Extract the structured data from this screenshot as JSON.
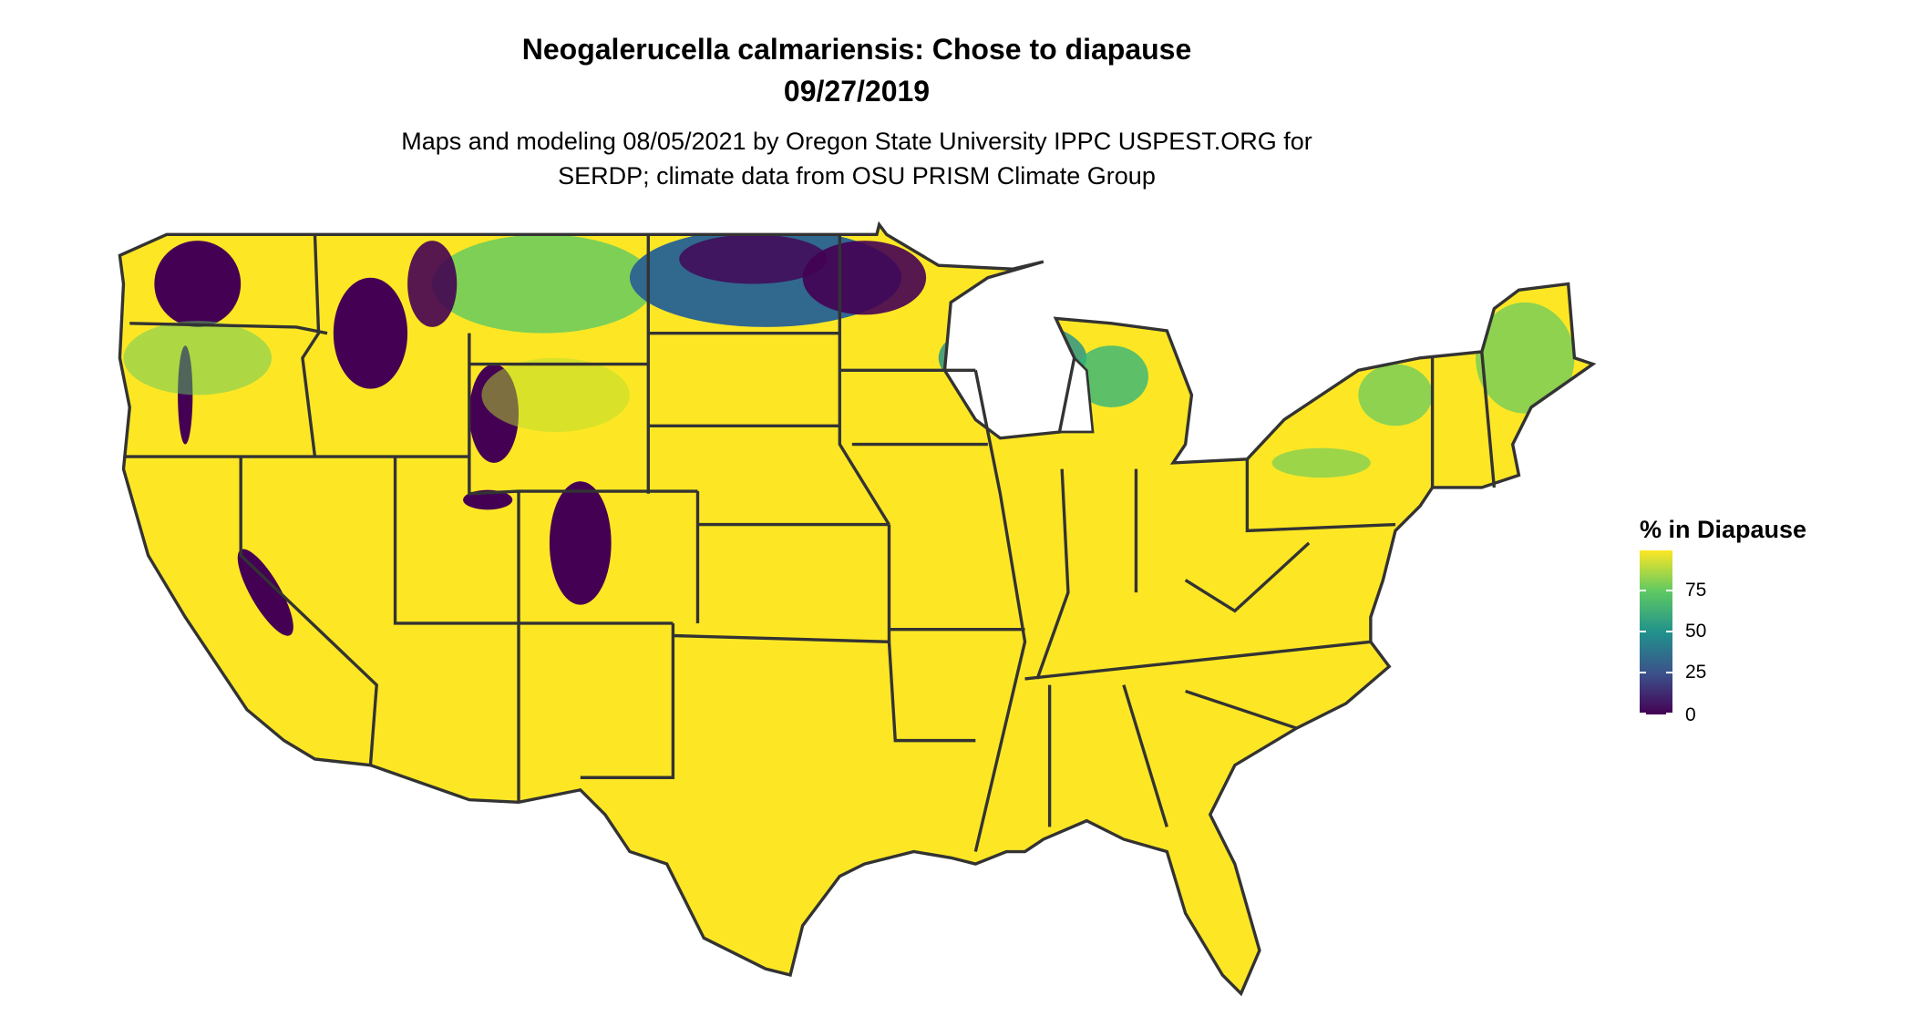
{
  "title": "Neogalerucella calmariensis: Chose to diapause",
  "date": "09/27/2019",
  "subtitle_line1": "Maps and modeling 08/05/2021 by Oregon State University IPPC USPEST.ORG for",
  "subtitle_line2": "SERDP; climate data from OSU PRISM Climate Group",
  "legend": {
    "title": "% in Diapause",
    "ticks": [
      "75",
      "50",
      "25",
      "0"
    ],
    "tick_values": [
      75,
      50,
      25,
      0
    ],
    "range": [
      0,
      100
    ],
    "palette": "viridis",
    "colors": {
      "low": "#440154",
      "mid": "#21918c",
      "high": "#fde725"
    }
  },
  "map": {
    "region": "Contiguous United States with state boundaries",
    "dominant_value_color": "#fde725",
    "low_diapause_regions": [
      "Cascades",
      "Northern Rockies",
      "Wyoming ranges",
      "Colorado Rockies",
      "Sierra Nevada",
      "Northern North Dakota / Minnesota",
      "Upper Michigan / Wisconsin",
      "Northern New England"
    ]
  }
}
